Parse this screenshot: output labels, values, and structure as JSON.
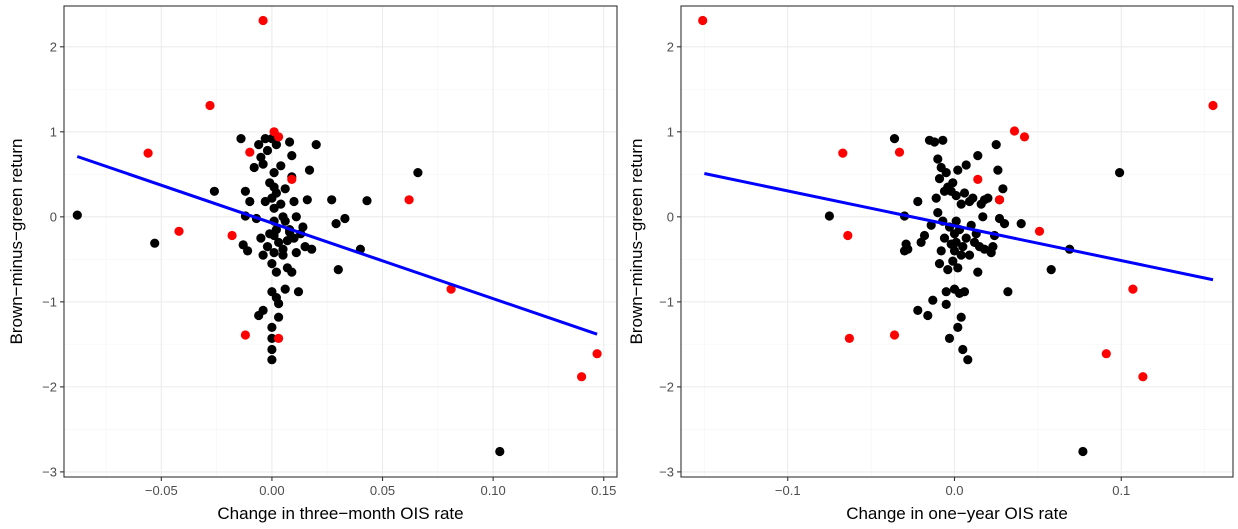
{
  "colors": {
    "point_black": "#000000",
    "point_red": "#ff0000",
    "fit_line": "#0000ff",
    "grid_major": "#ebebeb",
    "grid_minor": "#f5f5f5",
    "panel_border": "#333333"
  },
  "chart_data": [
    {
      "type": "scatter",
      "xlabel": "Change in three−month OIS rate",
      "ylabel": "Brown−minus−green return",
      "xlim": [
        -0.094,
        0.156
      ],
      "ylim": [
        -3.06,
        2.48
      ],
      "xticks": [
        -0.05,
        0.0,
        0.05,
        0.1,
        0.15
      ],
      "xtick_labels": [
        "−0.05",
        "0.00",
        "0.05",
        "0.10",
        "0.15"
      ],
      "yticks": [
        -3,
        -2,
        -1,
        0,
        1,
        2
      ],
      "ytick_labels": [
        "−3",
        "−2",
        "−1",
        "0",
        "1",
        "2"
      ],
      "grid": true,
      "fit_line": {
        "x": [
          -0.088,
          0.147
        ],
        "y": [
          0.71,
          -1.38
        ]
      },
      "series": [
        {
          "color": "black",
          "points": [
            [
              -0.088,
              0.02
            ],
            [
              -0.053,
              -0.31
            ],
            [
              -0.026,
              0.3
            ],
            [
              -0.014,
              0.92
            ],
            [
              -0.013,
              -0.33
            ],
            [
              -0.012,
              0.3
            ],
            [
              -0.012,
              0.01
            ],
            [
              -0.011,
              -0.4
            ],
            [
              -0.01,
              0.18
            ],
            [
              -0.008,
              0.58
            ],
            [
              -0.007,
              -0.02
            ],
            [
              -0.006,
              -1.16
            ],
            [
              -0.006,
              0.85
            ],
            [
              -0.005,
              0.7
            ],
            [
              -0.005,
              -0.25
            ],
            [
              -0.004,
              0.62
            ],
            [
              -0.004,
              -0.45
            ],
            [
              -0.004,
              -1.1
            ],
            [
              -0.003,
              0.92
            ],
            [
              -0.003,
              0.18
            ],
            [
              -0.002,
              -0.35
            ],
            [
              -0.002,
              0.78
            ],
            [
              -0.001,
              -0.2
            ],
            [
              -0.001,
              0.4
            ],
            [
              0.0,
              0.22
            ],
            [
              0.0,
              -0.55
            ],
            [
              0.0,
              0.92
            ],
            [
              0.0,
              -0.88
            ],
            [
              0.0,
              -1.3
            ],
            [
              0.0,
              -1.43
            ],
            [
              0.0,
              -1.56
            ],
            [
              0.0,
              -1.68
            ],
            [
              0.001,
              0.52
            ],
            [
              0.001,
              0.35
            ],
            [
              0.001,
              0.1
            ],
            [
              0.001,
              -0.05
            ],
            [
              0.001,
              -0.22
            ],
            [
              0.001,
              -0.42
            ],
            [
              0.002,
              -0.65
            ],
            [
              0.002,
              -0.95
            ],
            [
              0.002,
              0.28
            ],
            [
              0.002,
              -0.15
            ],
            [
              0.002,
              0.85
            ],
            [
              0.003,
              -0.3
            ],
            [
              0.003,
              -1.18
            ],
            [
              0.003,
              -1.02
            ],
            [
              0.004,
              0.6
            ],
            [
              0.004,
              0.15
            ],
            [
              0.005,
              -0.45
            ],
            [
              0.005,
              -0.38
            ],
            [
              0.005,
              0.0
            ],
            [
              0.006,
              -0.85
            ],
            [
              0.006,
              0.33
            ],
            [
              0.006,
              -0.05
            ],
            [
              0.007,
              -0.6
            ],
            [
              0.007,
              -0.28
            ],
            [
              0.008,
              0.88
            ],
            [
              0.008,
              -0.18
            ],
            [
              0.008,
              -0.15
            ],
            [
              0.009,
              0.72
            ],
            [
              0.009,
              0.47
            ],
            [
              0.009,
              -0.65
            ],
            [
              0.01,
              0.18
            ],
            [
              0.01,
              -0.25
            ],
            [
              0.011,
              -0.42
            ],
            [
              0.011,
              0.0
            ],
            [
              0.012,
              -0.88
            ],
            [
              0.013,
              -0.2
            ],
            [
              0.014,
              -0.12
            ],
            [
              0.015,
              -0.35
            ],
            [
              0.016,
              0.2
            ],
            [
              0.017,
              0.55
            ],
            [
              0.018,
              -0.38
            ],
            [
              0.02,
              0.85
            ],
            [
              0.027,
              0.2
            ],
            [
              0.029,
              -0.08
            ],
            [
              0.03,
              -0.62
            ],
            [
              0.033,
              -0.02
            ],
            [
              0.04,
              -0.38
            ],
            [
              0.043,
              0.19
            ],
            [
              0.066,
              0.52
            ],
            [
              0.103,
              -2.76
            ]
          ]
        },
        {
          "color": "red",
          "points": [
            [
              -0.004,
              2.31
            ],
            [
              -0.028,
              1.31
            ],
            [
              -0.056,
              0.75
            ],
            [
              -0.01,
              0.76
            ],
            [
              0.001,
              1.0
            ],
            [
              0.003,
              0.94
            ],
            [
              -0.042,
              -0.17
            ],
            [
              -0.018,
              -0.22
            ],
            [
              0.009,
              0.44
            ],
            [
              -0.012,
              -1.39
            ],
            [
              0.003,
              -1.43
            ],
            [
              0.062,
              0.2
            ],
            [
              0.081,
              -0.85
            ],
            [
              0.14,
              -1.88
            ],
            [
              0.147,
              -1.61
            ]
          ]
        }
      ]
    },
    {
      "type": "scatter",
      "xlabel": "Change in one−year OIS rate",
      "ylabel": "Brown−minus−green return",
      "xlim": [
        -0.164,
        0.167
      ],
      "ylim": [
        -3.06,
        2.48
      ],
      "xticks": [
        -0.1,
        0.0,
        0.1
      ],
      "xtick_labels": [
        "−0.1",
        "0.0",
        "0.1"
      ],
      "yticks": [
        -3,
        -2,
        -1,
        0,
        1,
        2
      ],
      "ytick_labels": [
        "−3",
        "−2",
        "−1",
        "0",
        "1",
        "2"
      ],
      "grid": true,
      "fit_line": {
        "x": [
          -0.15,
          0.155
        ],
        "y": [
          0.51,
          -0.74
        ]
      },
      "series": [
        {
          "color": "black",
          "points": [
            [
              -0.075,
              0.01
            ],
            [
              -0.036,
              0.92
            ],
            [
              -0.03,
              0.01
            ],
            [
              -0.03,
              -0.4
            ],
            [
              -0.029,
              -0.32
            ],
            [
              -0.028,
              -0.38
            ],
            [
              -0.022,
              0.18
            ],
            [
              -0.022,
              -1.1
            ],
            [
              -0.02,
              -0.3
            ],
            [
              -0.018,
              -0.22
            ],
            [
              -0.016,
              -1.16
            ],
            [
              -0.015,
              0.9
            ],
            [
              -0.014,
              -0.1
            ],
            [
              -0.013,
              -0.98
            ],
            [
              -0.012,
              0.88
            ],
            [
              -0.011,
              0.22
            ],
            [
              -0.01,
              0.05
            ],
            [
              -0.01,
              0.68
            ],
            [
              -0.009,
              -0.55
            ],
            [
              -0.009,
              0.45
            ],
            [
              -0.008,
              0.58
            ],
            [
              -0.008,
              -0.4
            ],
            [
              -0.007,
              0.9
            ],
            [
              -0.007,
              -0.05
            ],
            [
              -0.006,
              -0.25
            ],
            [
              -0.006,
              0.3
            ],
            [
              -0.005,
              0.52
            ],
            [
              -0.005,
              -1.03
            ],
            [
              -0.005,
              -0.88
            ],
            [
              -0.004,
              -0.62
            ],
            [
              -0.004,
              0.35
            ],
            [
              -0.003,
              -1.43
            ],
            [
              -0.003,
              -0.12
            ],
            [
              -0.002,
              0.3
            ],
            [
              -0.002,
              -0.32
            ],
            [
              -0.001,
              -0.52
            ],
            [
              -0.001,
              0.4
            ],
            [
              0.0,
              -0.4
            ],
            [
              0.0,
              -0.2
            ],
            [
              0.0,
              -0.85
            ],
            [
              0.001,
              -0.3
            ],
            [
              0.001,
              0.25
            ],
            [
              0.001,
              -0.05
            ],
            [
              0.002,
              -1.3
            ],
            [
              0.002,
              0.55
            ],
            [
              0.002,
              -0.6
            ],
            [
              0.003,
              -0.9
            ],
            [
              0.003,
              -0.15
            ],
            [
              0.004,
              -0.45
            ],
            [
              0.004,
              -1.18
            ],
            [
              0.004,
              0.15
            ],
            [
              0.005,
              -0.35
            ],
            [
              0.005,
              -1.56
            ],
            [
              0.006,
              -0.88
            ],
            [
              0.006,
              0.28
            ],
            [
              0.007,
              0.61
            ],
            [
              0.007,
              -0.25
            ],
            [
              0.008,
              -1.68
            ],
            [
              0.009,
              -0.45
            ],
            [
              0.009,
              0.18
            ],
            [
              0.01,
              -0.1
            ],
            [
              0.011,
              0.22
            ],
            [
              0.012,
              -0.3
            ],
            [
              0.013,
              -0.2
            ],
            [
              0.014,
              0.72
            ],
            [
              0.014,
              -0.65
            ],
            [
              0.015,
              -0.35
            ],
            [
              0.016,
              0.15
            ],
            [
              0.017,
              0.0
            ],
            [
              0.018,
              -0.38
            ],
            [
              0.018,
              0.2
            ],
            [
              0.02,
              0.22
            ],
            [
              0.022,
              -0.42
            ],
            [
              0.023,
              -0.35
            ],
            [
              0.024,
              -0.22
            ],
            [
              0.025,
              0.85
            ],
            [
              0.026,
              0.55
            ],
            [
              0.027,
              0.2
            ],
            [
              0.027,
              -0.02
            ],
            [
              0.029,
              0.33
            ],
            [
              0.03,
              -0.08
            ],
            [
              0.032,
              -0.88
            ],
            [
              0.04,
              -0.08
            ],
            [
              0.058,
              -0.62
            ],
            [
              0.069,
              -0.38
            ],
            [
              0.077,
              -2.76
            ],
            [
              0.099,
              0.52
            ]
          ]
        },
        {
          "color": "red",
          "points": [
            [
              -0.151,
              2.31
            ],
            [
              -0.067,
              0.75
            ],
            [
              -0.064,
              -0.22
            ],
            [
              -0.063,
              -1.43
            ],
            [
              -0.033,
              0.76
            ],
            [
              -0.036,
              -1.39
            ],
            [
              0.014,
              0.44
            ],
            [
              0.027,
              0.2
            ],
            [
              0.036,
              1.01
            ],
            [
              0.042,
              0.94
            ],
            [
              0.051,
              -0.17
            ],
            [
              0.091,
              -1.61
            ],
            [
              0.107,
              -0.85
            ],
            [
              0.113,
              -1.88
            ],
            [
              0.155,
              1.31
            ]
          ]
        }
      ]
    }
  ]
}
